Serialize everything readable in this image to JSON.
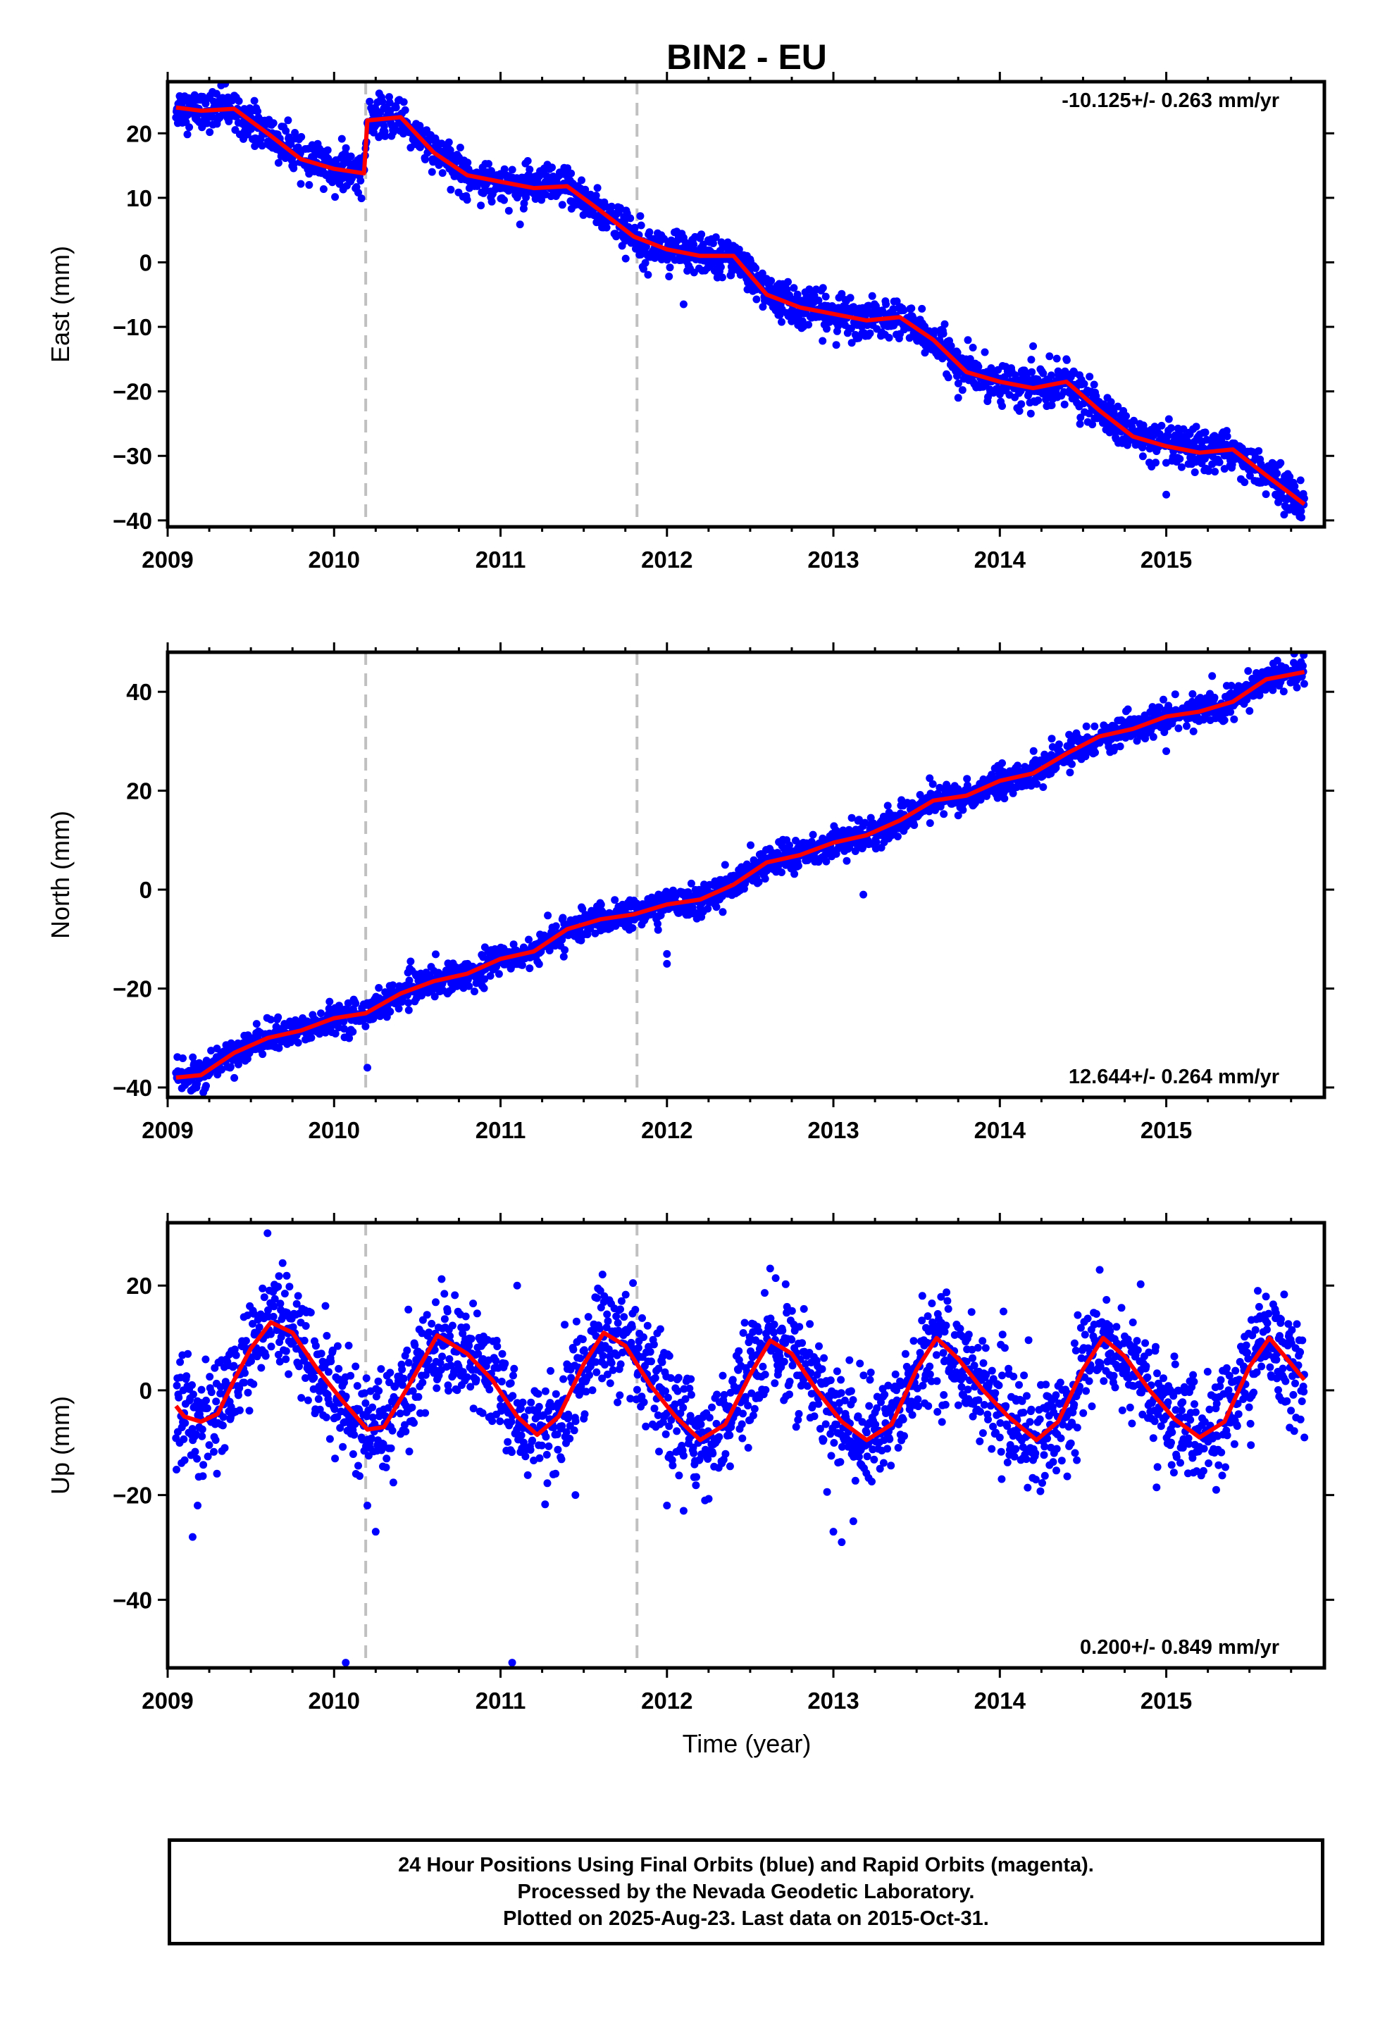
{
  "title": "BIN2 - EU",
  "xlabel": "Time (year)",
  "x_ticks": [
    "2009",
    "2010",
    "2011",
    "2012",
    "2013",
    "2014",
    "2015"
  ],
  "x_range": [
    2009.0,
    2015.95
  ],
  "breaks": [
    2010.19,
    2011.82
  ],
  "colors": {
    "points": "#0000ff",
    "model": "#ff0000",
    "breaks": "#c0c0c0",
    "frame": "#000000"
  },
  "footer": {
    "line1": "24 Hour Positions Using Final Orbits (blue) and Rapid Orbits (magenta).",
    "line2": "Processed by the Nevada Geodetic Laboratory.",
    "line3": "Plotted on 2025-Aug-23. Last data on 2015-Oct-31."
  },
  "chart_data": [
    {
      "type": "scatter",
      "name": "east",
      "ylabel": "East (mm)",
      "rate": "-10.125+/- 0.263 mm/yr",
      "rate_position": "top-right",
      "ylim": [
        -41,
        28
      ],
      "yticks": [
        20,
        10,
        0,
        -10,
        -20,
        -30,
        -40
      ],
      "ytick_labels": [
        "20",
        "10",
        "0",
        "−10",
        "−20",
        "−30",
        "−40"
      ],
      "scatter_amp": 1.5,
      "model": {
        "x": [
          2009.05,
          2009.2,
          2009.4,
          2009.6,
          2009.8,
          2010.0,
          2010.18,
          2010.2,
          2010.4,
          2010.6,
          2010.8,
          2011.0,
          2011.2,
          2011.4,
          2011.6,
          2011.8,
          2012.0,
          2012.2,
          2012.4,
          2012.6,
          2012.8,
          2013.0,
          2013.2,
          2013.4,
          2013.6,
          2013.8,
          2014.0,
          2014.2,
          2014.4,
          2014.6,
          2014.8,
          2015.0,
          2015.2,
          2015.4,
          2015.6,
          2015.83
        ],
        "y": [
          24,
          23.5,
          23.8,
          20,
          16,
          14.5,
          13.8,
          22,
          22.5,
          17,
          13.5,
          12.5,
          11.5,
          11.8,
          8,
          4,
          2,
          1,
          1,
          -5,
          -7,
          -8,
          -9,
          -8.5,
          -12,
          -17,
          -18.5,
          -19.5,
          -18.5,
          -23,
          -27,
          -28.5,
          -29.5,
          -29,
          -33,
          -37.5
        ]
      },
      "outliers": {
        "x": [
          2009.85,
          2010.05,
          2011.05,
          2011.5,
          2012.0,
          2012.1,
          2013.55,
          2013.75,
          2014.2,
          2014.4,
          2015.0,
          2015.35,
          2015.8
        ],
        "y": [
          12,
          13,
          8,
          10,
          2,
          -6.5,
          -14,
          -21,
          -13,
          -15,
          -36,
          -32,
          -39
        ]
      }
    },
    {
      "type": "scatter",
      "name": "north",
      "ylabel": "North (mm)",
      "rate": "12.644+/- 0.264 mm/yr",
      "rate_position": "bottom-right",
      "ylim": [
        -42,
        48
      ],
      "yticks": [
        40,
        20,
        0,
        -20,
        -40
      ],
      "ytick_labels": [
        "40",
        "20",
        "0",
        "−20",
        "−40"
      ],
      "scatter_amp": 1.5,
      "model": {
        "x": [
          2009.05,
          2009.2,
          2009.4,
          2009.6,
          2009.8,
          2010.0,
          2010.19,
          2010.4,
          2010.6,
          2010.8,
          2011.0,
          2011.2,
          2011.4,
          2011.6,
          2011.8,
          2012.0,
          2012.2,
          2012.4,
          2012.6,
          2012.8,
          2013.0,
          2013.2,
          2013.4,
          2013.6,
          2013.8,
          2014.0,
          2014.2,
          2014.4,
          2014.6,
          2014.8,
          2015.0,
          2015.2,
          2015.4,
          2015.6,
          2015.83
        ],
        "y": [
          -38,
          -37.5,
          -33,
          -30,
          -28.5,
          -26,
          -25,
          -21,
          -18.5,
          -17,
          -14,
          -12.5,
          -8,
          -6,
          -5,
          -3,
          -2,
          1,
          5.5,
          7,
          9.5,
          11,
          14,
          18,
          19,
          22,
          23.5,
          27.5,
          31,
          32.5,
          35,
          36,
          38,
          42.5,
          44
        ]
      },
      "outliers": {
        "x": [
          2010.2,
          2012.0,
          2012.0,
          2013.18,
          2013.75,
          2015.0
        ],
        "y": [
          -36,
          -13,
          -15,
          -1,
          15,
          28
        ]
      }
    },
    {
      "type": "scatter",
      "name": "up",
      "ylabel": "Up (mm)",
      "rate": "0.200+/- 0.849 mm/yr",
      "rate_position": "bottom-right",
      "ylim": [
        -53,
        32
      ],
      "yticks": [
        20,
        0,
        -20,
        -40
      ],
      "ytick_labels": [
        "20",
        "0",
        "−20",
        "−40"
      ],
      "scatter_amp": 5,
      "model": {
        "x": [
          2009.05,
          2009.1,
          2009.2,
          2009.3,
          2009.4,
          2009.5,
          2009.62,
          2009.75,
          2009.9,
          2010.05,
          2010.2,
          2010.3,
          2010.45,
          2010.62,
          2010.8,
          2010.95,
          2011.1,
          2011.22,
          2011.35,
          2011.5,
          2011.62,
          2011.75,
          2011.9,
          2012.05,
          2012.2,
          2012.35,
          2012.5,
          2012.62,
          2012.75,
          2012.9,
          2013.05,
          2013.2,
          2013.35,
          2013.5,
          2013.62,
          2013.75,
          2013.9,
          2014.05,
          2014.22,
          2014.35,
          2014.5,
          2014.62,
          2014.75,
          2014.9,
          2015.05,
          2015.2,
          2015.35,
          2015.5,
          2015.62,
          2015.83
        ],
        "y": [
          -3,
          -5,
          -6,
          -4.5,
          2,
          8,
          13,
          11,
          4,
          -2,
          -7.5,
          -7,
          1,
          10.5,
          7,
          2,
          -5,
          -8.5,
          -5,
          5,
          11,
          8.5,
          1,
          -5,
          -9.5,
          -6.5,
          3,
          9.5,
          7,
          0,
          -6,
          -9.5,
          -6.5,
          4,
          10,
          6,
          0,
          -5,
          -9.5,
          -6,
          4,
          10,
          6.5,
          0,
          -5.5,
          -9,
          -6,
          4.5,
          10,
          2
        ]
      },
      "outliers": {
        "x": [
          2009.15,
          2009.18,
          2009.6,
          2010.07,
          2010.2,
          2010.25,
          2011.07,
          2011.1,
          2011.6,
          2011.45,
          2012.0,
          2012.1,
          2013.05,
          2013.0,
          2013.12,
          2014.0,
          2014.6,
          2015.3,
          2015.55,
          2015.83
        ],
        "y": [
          -28,
          -22,
          30,
          -52,
          -22,
          -27,
          -52,
          20,
          19,
          -20,
          -22,
          -23,
          -29,
          -27,
          -25,
          -9,
          23,
          -19,
          19,
          -9
        ]
      }
    }
  ]
}
